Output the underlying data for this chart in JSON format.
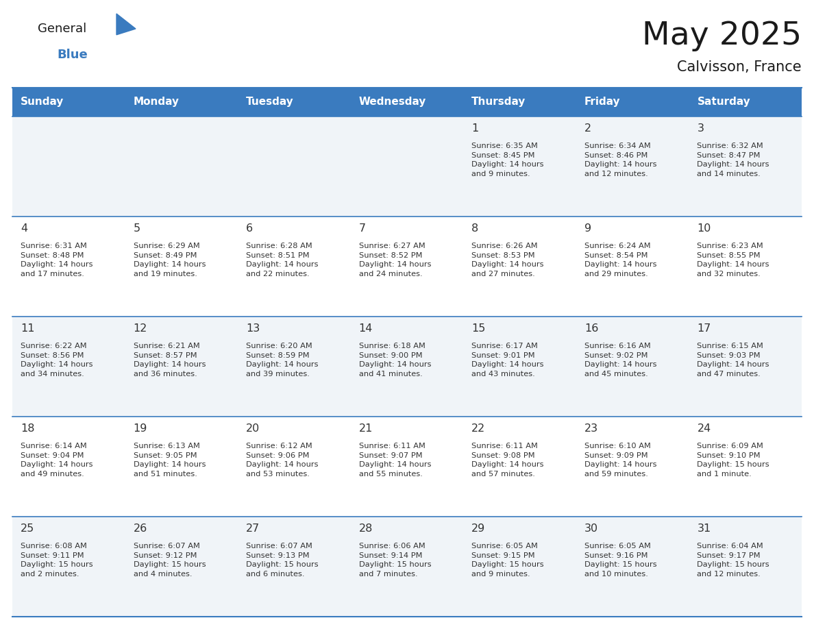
{
  "title": "May 2025",
  "subtitle": "Calvisson, France",
  "header_color": "#3a7bbf",
  "header_text_color": "#ffffff",
  "row_colors": [
    "#f0f4f8",
    "#ffffff"
  ],
  "separator_color": "#3a7bbf",
  "text_color": "#333333",
  "day_number_color": "#333333",
  "days_of_week": [
    "Sunday",
    "Monday",
    "Tuesday",
    "Wednesday",
    "Thursday",
    "Friday",
    "Saturday"
  ],
  "cell_data": [
    [
      "",
      "",
      "",
      "",
      "1\nSunrise: 6:35 AM\nSunset: 8:45 PM\nDaylight: 14 hours\nand 9 minutes.",
      "2\nSunrise: 6:34 AM\nSunset: 8:46 PM\nDaylight: 14 hours\nand 12 minutes.",
      "3\nSunrise: 6:32 AM\nSunset: 8:47 PM\nDaylight: 14 hours\nand 14 minutes."
    ],
    [
      "4\nSunrise: 6:31 AM\nSunset: 8:48 PM\nDaylight: 14 hours\nand 17 minutes.",
      "5\nSunrise: 6:29 AM\nSunset: 8:49 PM\nDaylight: 14 hours\nand 19 minutes.",
      "6\nSunrise: 6:28 AM\nSunset: 8:51 PM\nDaylight: 14 hours\nand 22 minutes.",
      "7\nSunrise: 6:27 AM\nSunset: 8:52 PM\nDaylight: 14 hours\nand 24 minutes.",
      "8\nSunrise: 6:26 AM\nSunset: 8:53 PM\nDaylight: 14 hours\nand 27 minutes.",
      "9\nSunrise: 6:24 AM\nSunset: 8:54 PM\nDaylight: 14 hours\nand 29 minutes.",
      "10\nSunrise: 6:23 AM\nSunset: 8:55 PM\nDaylight: 14 hours\nand 32 minutes."
    ],
    [
      "11\nSunrise: 6:22 AM\nSunset: 8:56 PM\nDaylight: 14 hours\nand 34 minutes.",
      "12\nSunrise: 6:21 AM\nSunset: 8:57 PM\nDaylight: 14 hours\nand 36 minutes.",
      "13\nSunrise: 6:20 AM\nSunset: 8:59 PM\nDaylight: 14 hours\nand 39 minutes.",
      "14\nSunrise: 6:18 AM\nSunset: 9:00 PM\nDaylight: 14 hours\nand 41 minutes.",
      "15\nSunrise: 6:17 AM\nSunset: 9:01 PM\nDaylight: 14 hours\nand 43 minutes.",
      "16\nSunrise: 6:16 AM\nSunset: 9:02 PM\nDaylight: 14 hours\nand 45 minutes.",
      "17\nSunrise: 6:15 AM\nSunset: 9:03 PM\nDaylight: 14 hours\nand 47 minutes."
    ],
    [
      "18\nSunrise: 6:14 AM\nSunset: 9:04 PM\nDaylight: 14 hours\nand 49 minutes.",
      "19\nSunrise: 6:13 AM\nSunset: 9:05 PM\nDaylight: 14 hours\nand 51 minutes.",
      "20\nSunrise: 6:12 AM\nSunset: 9:06 PM\nDaylight: 14 hours\nand 53 minutes.",
      "21\nSunrise: 6:11 AM\nSunset: 9:07 PM\nDaylight: 14 hours\nand 55 minutes.",
      "22\nSunrise: 6:11 AM\nSunset: 9:08 PM\nDaylight: 14 hours\nand 57 minutes.",
      "23\nSunrise: 6:10 AM\nSunset: 9:09 PM\nDaylight: 14 hours\nand 59 minutes.",
      "24\nSunrise: 6:09 AM\nSunset: 9:10 PM\nDaylight: 15 hours\nand 1 minute."
    ],
    [
      "25\nSunrise: 6:08 AM\nSunset: 9:11 PM\nDaylight: 15 hours\nand 2 minutes.",
      "26\nSunrise: 6:07 AM\nSunset: 9:12 PM\nDaylight: 15 hours\nand 4 minutes.",
      "27\nSunrise: 6:07 AM\nSunset: 9:13 PM\nDaylight: 15 hours\nand 6 minutes.",
      "28\nSunrise: 6:06 AM\nSunset: 9:14 PM\nDaylight: 15 hours\nand 7 minutes.",
      "29\nSunrise: 6:05 AM\nSunset: 9:15 PM\nDaylight: 15 hours\nand 9 minutes.",
      "30\nSunrise: 6:05 AM\nSunset: 9:16 PM\nDaylight: 15 hours\nand 10 minutes.",
      "31\nSunrise: 6:04 AM\nSunset: 9:17 PM\nDaylight: 15 hours\nand 12 minutes."
    ]
  ],
  "logo_color_general": "#1a1a1a",
  "logo_color_blue": "#3a7bbf",
  "logo_triangle_color": "#3a7bbf",
  "fig_width": 11.88,
  "fig_height": 9.18,
  "dpi": 100
}
